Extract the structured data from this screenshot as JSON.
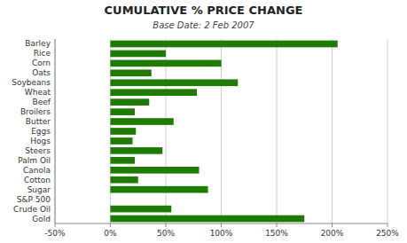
{
  "chart_data": {
    "type": "bar",
    "orientation": "horizontal",
    "title": "CUMULATIVE % PRICE CHANGE",
    "subtitle": "Base Date: 2 Feb 2007",
    "categories": [
      "Barley",
      "Rice",
      "Corn",
      "Oats",
      "Soybeans",
      "Wheat",
      "Beef",
      "Broilers",
      "Butter",
      "Eggs",
      "Hogs",
      "Steers",
      "Palm Oil",
      "Canola",
      "Cotton",
      "Sugar",
      "S&P 500",
      "Crude Oil",
      "Gold"
    ],
    "values": [
      205,
      50,
      100,
      37,
      115,
      78,
      35,
      22,
      57,
      23,
      20,
      47,
      22,
      80,
      25,
      88,
      0,
      55,
      175
    ],
    "color": "#1e7b00",
    "xlim": [
      -50,
      250
    ],
    "xticks": [
      {
        "value": -50,
        "label": "-50%"
      },
      {
        "value": 0,
        "label": "0%"
      },
      {
        "value": 50,
        "label": "50%"
      },
      {
        "value": 100,
        "label": "100%"
      },
      {
        "value": 150,
        "label": "150%"
      },
      {
        "value": 200,
        "label": "200%"
      },
      {
        "value": 250,
        "label": "250%"
      }
    ],
    "grid": true
  }
}
